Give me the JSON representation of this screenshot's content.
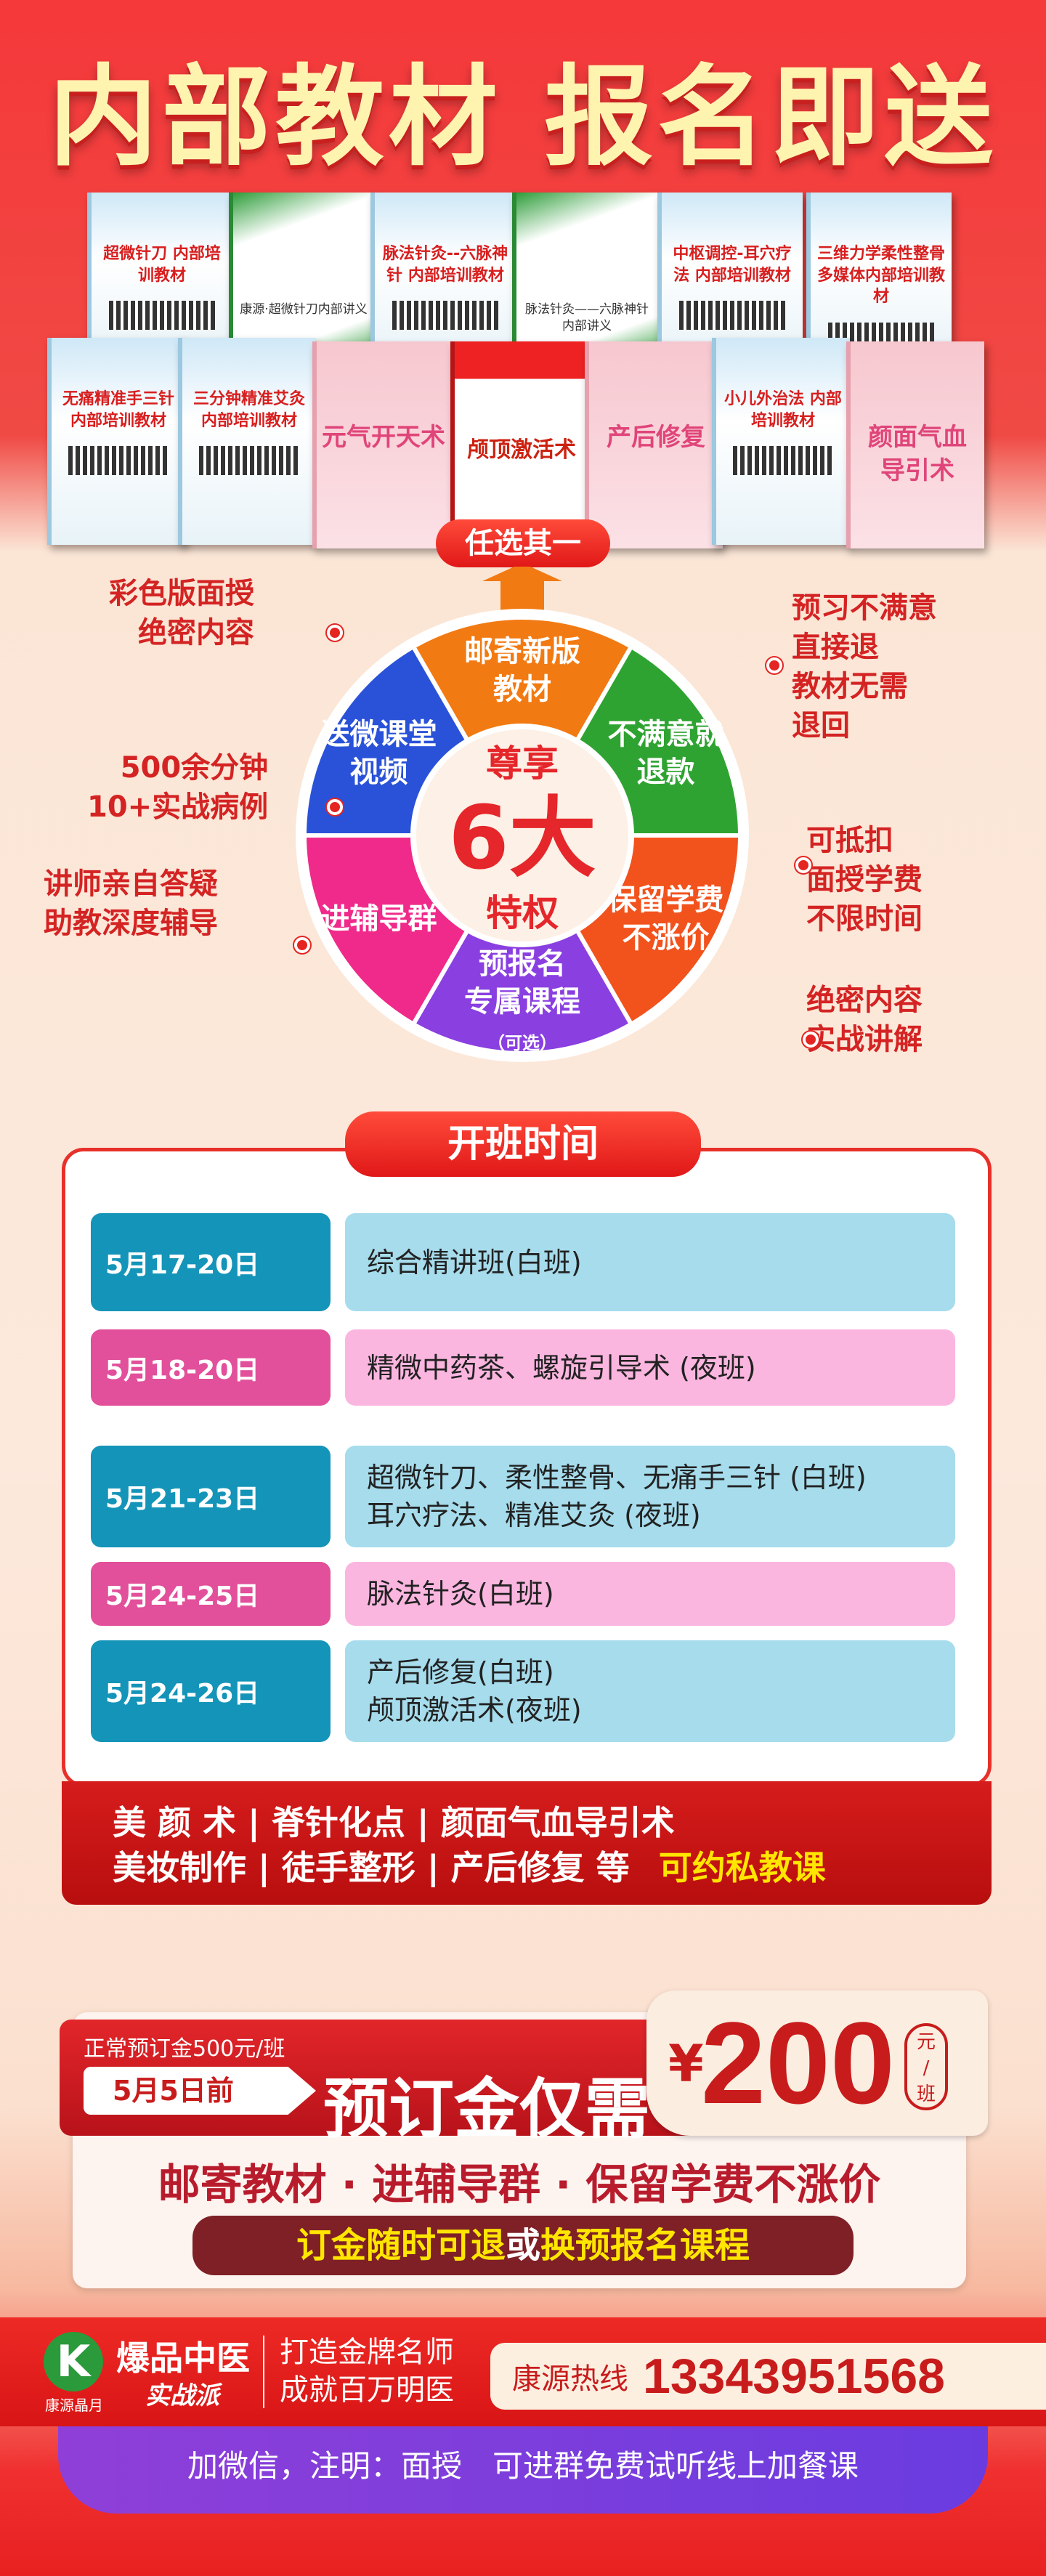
{
  "title": "内部教材 报名即送",
  "books": [
    {
      "t": "超微针刀 内部培训教材",
      "s": "blue"
    },
    {
      "t": "康源·超微针刀内部讲义",
      "s": "green"
    },
    {
      "t": "脉法针灸--六脉神针 内部培训教材",
      "s": "blue"
    },
    {
      "t": "脉法针灸——六脉神针内部讲义",
      "s": "green"
    },
    {
      "t": "中枢调控-耳穴疗法 内部培训教材",
      "s": "blue"
    },
    {
      "t": "三维力学柔性整骨 多媒体内部培训教材",
      "s": "blue"
    },
    {
      "t": "无痛精准手三针 内部培训教材",
      "s": "blue"
    },
    {
      "t": "三分钟精准艾灸 内部培训教材",
      "s": "blue"
    },
    {
      "t": "元气开天术",
      "s": "pink"
    },
    {
      "t": "颅顶激活术",
      "s": "red"
    },
    {
      "t": "产后修复",
      "s": "pink"
    },
    {
      "t": "小儿外治法 内部培训教材",
      "s": "blue"
    },
    {
      "t": "颜面气血 导引术",
      "s": "pink"
    }
  ],
  "choose_one": "任选其一",
  "wheel": {
    "center_top": "尊享",
    "center_big": "6大",
    "center_bottom": "特权",
    "segments": [
      {
        "l1": "邮寄新版",
        "l2": "教材",
        "color": "#f27a12"
      },
      {
        "l1": "不满意就",
        "l2": "退款",
        "color": "#2fa332"
      },
      {
        "l1": "保留学费",
        "l2": "不涨价",
        "color": "#f2521c"
      },
      {
        "l1": "预报名",
        "l2": "专属课程",
        "l3": "（可选）",
        "color": "#8a3fe0"
      },
      {
        "l1": "进辅导群",
        "l2": "",
        "color": "#ef2a8a"
      },
      {
        "l1": "送微课堂",
        "l2": "视频",
        "color": "#2a52d8"
      }
    ]
  },
  "side_labels": {
    "l1": [
      "彩色版面授",
      "绝密内容"
    ],
    "l2": [
      "500余分钟",
      "10+实战病例"
    ],
    "l3": [
      "讲师亲自答疑",
      "助教深度辅导"
    ],
    "r1": [
      "预习不满意",
      "直接退",
      "教材无需",
      "退回"
    ],
    "r2": [
      "可抵扣",
      "面授学费",
      "不限时间"
    ],
    "r3": [
      "绝密内容",
      "实战讲解"
    ]
  },
  "schedule": {
    "title": "开班时间",
    "rows": [
      {
        "date": "5月17-20日",
        "courses": [
          "综合精讲班(白班)"
        ],
        "style": "blue"
      },
      {
        "date": "5月18-20日",
        "courses": [
          "精微中药茶、螺旋引导术 (夜班)"
        ],
        "style": "pink"
      },
      {
        "date": "5月21-23日",
        "courses": [
          "超微针刀、柔性整骨、无痛手三针 (白班)",
          "耳穴疗法、精准艾灸 (夜班)"
        ],
        "style": "blue"
      },
      {
        "date": "5月24-25日",
        "courses": [
          "脉法针灸(白班)"
        ],
        "style": "pink"
      },
      {
        "date": "5月24-26日",
        "courses": [
          "产后修复(白班)",
          "颅顶激活术(夜班)"
        ],
        "style": "blue"
      }
    ]
  },
  "private": {
    "line1": "美 颜 术 | 脊针化点 | 颜面气血导引术",
    "line2": "美妆制作 | 徒手整形 | 产后修复 等",
    "highlight": "可约私教课"
  },
  "deposit": {
    "normal": "正常预订金500元/班",
    "deadline": "5月5日前",
    "label": "预订金仅需",
    "currency": "¥",
    "amount": "200",
    "unit1": "元",
    "unit2": "班",
    "benefits": "邮寄教材 · 进辅导群 · 保留学费不涨价",
    "refund_a": "订金随时可退",
    "refund_b": "或",
    "refund_c": "换预报名课程"
  },
  "footer": {
    "brand_small": "康源晶月",
    "brand": "爆品中医",
    "brand_sub": "实战派",
    "slogan1": "打造金牌名师",
    "slogan2": "成就百万明医",
    "hotline_label": "康源热线",
    "hotline": "13343951568",
    "note": "加微信，注明：面授　可进群免费试听线上加餐课"
  }
}
